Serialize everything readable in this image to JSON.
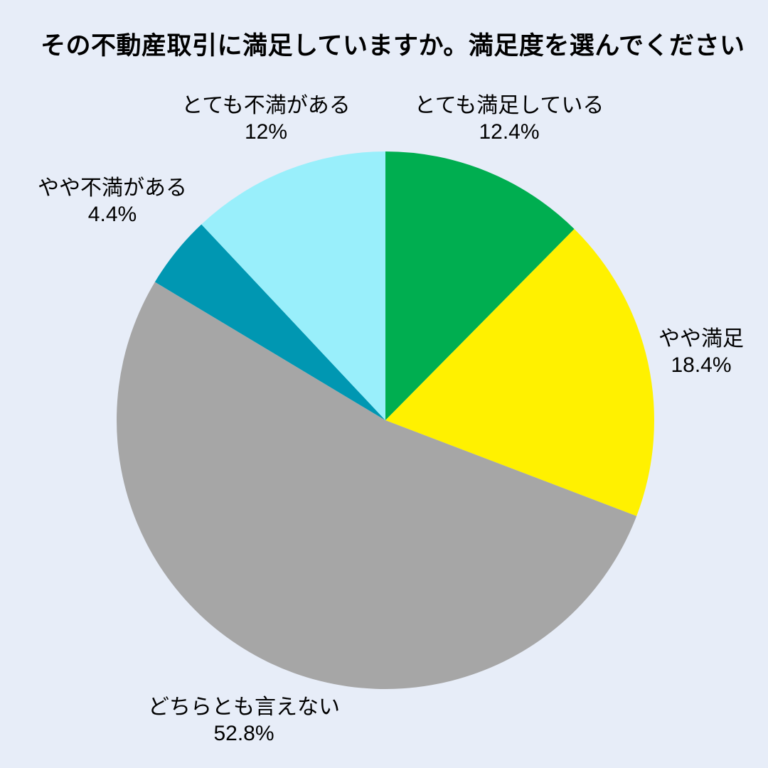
{
  "page": {
    "background_color": "#E7EDF8",
    "text_color": "#000000"
  },
  "chart_data": {
    "type": "pie",
    "title": "その不動産取引に満足していますか。満足度を選んでください",
    "categories": [
      "とても満足している",
      "やや満足",
      "どちらとも言えない",
      "やや不満がある",
      "とても不満がある"
    ],
    "values": [
      12.4,
      18.4,
      52.8,
      4.4,
      12
    ],
    "unit": "%",
    "colors": [
      "#00AE50",
      "#FFF100",
      "#A6A6A6",
      "#0097B2",
      "#99EFFB"
    ],
    "start_angle": "top",
    "direction": "clockwise",
    "legend": "none",
    "labels": [
      {
        "text": "とても満足している",
        "value": "12.4%"
      },
      {
        "text": "やや満足",
        "value": "18.4%"
      },
      {
        "text": "どちらとも言えない",
        "value": "52.8%"
      },
      {
        "text": "やや不満がある",
        "value": "4.4%"
      },
      {
        "text": "とても不満がある",
        "value": "12%"
      }
    ]
  }
}
